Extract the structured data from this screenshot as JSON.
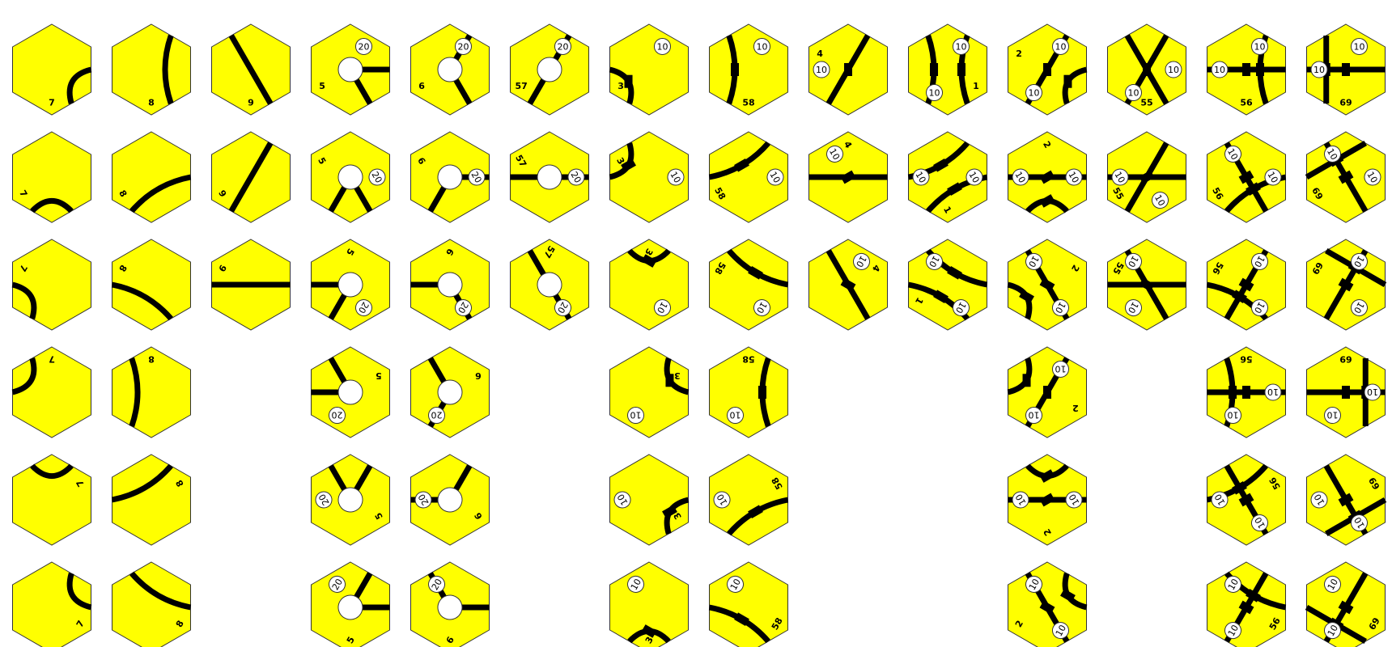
{
  "tile_colors": {
    "fill": "#ffff00",
    "edge": "#333333",
    "track": "#000000",
    "city_fill": "#ffffff"
  },
  "rows": 6,
  "columns": [
    {
      "id": "7",
      "kind": "track",
      "segs": [
        [
          "arc",
          1,
          2
        ]
      ],
      "labels": [
        [
          "7",
          3
        ]
      ]
    },
    {
      "id": "8",
      "kind": "track",
      "segs": [
        [
          "arc",
          0,
          2
        ]
      ],
      "labels": [
        [
          "8",
          3
        ]
      ]
    },
    {
      "id": "9",
      "kind": "track",
      "segs": [
        [
          "line",
          5,
          2
        ]
      ],
      "labels": [
        [
          "9",
          3
        ]
      ],
      "rot": 3
    },
    {
      "id": "5",
      "kind": "city",
      "city": [
        1,
        2
      ],
      "rev": 20,
      "labels": [
        [
          "5",
          4
        ]
      ],
      "rot": 6
    },
    {
      "id": "6",
      "kind": "city",
      "city": [
        0,
        2
      ],
      "rev": 20,
      "labels": [
        [
          "6",
          4
        ]
      ],
      "rot": 6
    },
    {
      "id": "57",
      "kind": "city",
      "city": [
        0,
        3
      ],
      "rev": 20,
      "labels": [
        [
          "57",
          4
        ]
      ],
      "rot": 3
    },
    {
      "id": "3",
      "kind": "town",
      "segs": [
        [
          "arc",
          3,
          4,
          true
        ]
      ],
      "rev": [
        [
          10,
          0
        ]
      ],
      "labels": [
        [
          "3",
          4
        ]
      ],
      "rot": 6
    },
    {
      "id": "58",
      "kind": "town",
      "segs": [
        [
          "arc",
          5,
          3,
          true
        ]
      ],
      "rev": [
        [
          10,
          0
        ]
      ],
      "labels": [
        [
          "58",
          3
        ]
      ],
      "rot": 6
    },
    {
      "id": "4",
      "kind": "town",
      "segs": [
        [
          "line",
          0,
          3,
          true
        ]
      ],
      "rev": [
        [
          10,
          4
        ]
      ],
      "labels": [
        [
          "4",
          5
        ]
      ],
      "rot": 3
    },
    {
      "id": "1",
      "kind": "town",
      "segs": [
        [
          "arc",
          0,
          2,
          true
        ],
        [
          "arc",
          3,
          5,
          true
        ]
      ],
      "rev": [
        [
          10,
          0
        ],
        [
          10,
          3
        ]
      ],
      "labels": [
        [
          "1",
          2
        ]
      ],
      "rot": 3
    },
    {
      "id": "2",
      "kind": "town",
      "segs": [
        [
          "line",
          0,
          3,
          true
        ],
        [
          "arc",
          1,
          2,
          true
        ]
      ],
      "rev": [
        [
          10,
          0
        ],
        [
          10,
          3
        ]
      ],
      "labels": [
        [
          "2",
          5
        ]
      ],
      "rot": 6
    },
    {
      "id": "55",
      "kind": "town",
      "segs": [
        [
          "line",
          5,
          2,
          true
        ],
        [
          "line",
          0,
          3,
          true
        ]
      ],
      "rev": [
        [
          10,
          1
        ],
        [
          10,
          3
        ]
      ],
      "labels": [
        [
          "55",
          3
        ]
      ],
      "rot": 3
    },
    {
      "id": "56",
      "kind": "town",
      "segs": [
        [
          "arc",
          0,
          2,
          true
        ],
        [
          "arc",
          1,
          4,
          true
        ]
      ],
      "rev": [
        [
          10,
          0
        ],
        [
          10,
          4
        ]
      ],
      "labels": [
        [
          "56",
          3
        ]
      ],
      "rot": 6
    },
    {
      "id": "69",
      "kind": "town",
      "segs": [
        [
          "line",
          5,
          3,
          true
        ],
        [
          "arc",
          1,
          4,
          true
        ]
      ],
      "rev": [
        [
          10,
          0
        ],
        [
          10,
          4
        ]
      ],
      "labels": [
        [
          "69",
          3
        ]
      ],
      "rot": 6
    }
  ]
}
